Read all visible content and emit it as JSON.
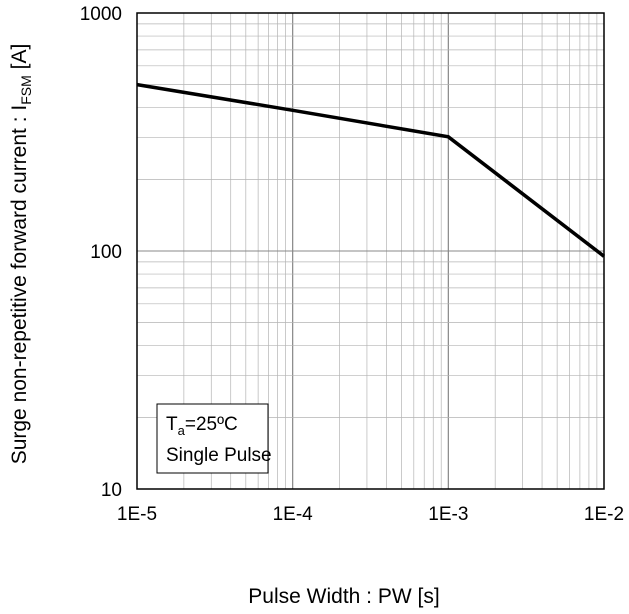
{
  "chart_data": {
    "type": "line",
    "title": "",
    "xlabel": "Pulse Width : PW [s]",
    "ylabel_main": "Surge non-repetitive forward current : I",
    "ylabel_sub": "FSM",
    "ylabel_unit": " [A]",
    "x_scale": "log",
    "y_scale": "log",
    "xlim": [
      1e-05,
      0.01
    ],
    "ylim": [
      10,
      1000
    ],
    "x_ticks": [
      {
        "value": 1e-05,
        "label": "1E-5"
      },
      {
        "value": 0.0001,
        "label": "1E-4"
      },
      {
        "value": 0.001,
        "label": "1E-3"
      },
      {
        "value": 0.01,
        "label": "1E-2"
      }
    ],
    "y_ticks": [
      {
        "value": 10,
        "label": "10"
      },
      {
        "value": 100,
        "label": "100"
      },
      {
        "value": 1000,
        "label": "1000"
      }
    ],
    "grid": true,
    "series": [
      {
        "x": [
          1e-05,
          0.0001,
          0.001,
          0.01
        ],
        "y": [
          500,
          390,
          302,
          95
        ]
      }
    ],
    "annotation": {
      "line1_main": "T",
      "line1_sub": "a",
      "line1_rest": "=25ºC",
      "line2": "Single Pulse"
    },
    "colors": {
      "major_grid": "#888888",
      "minor_grid": "#b4b4b4",
      "line": "#000000"
    }
  }
}
